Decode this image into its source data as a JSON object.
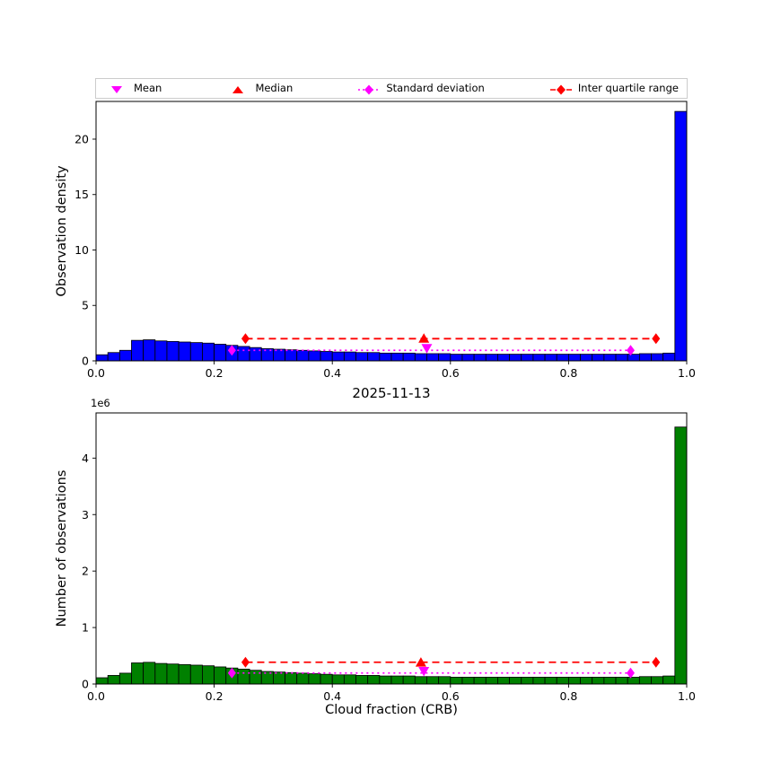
{
  "figure": {
    "background": "#ffffff"
  },
  "legend": {
    "items": [
      {
        "label": "Mean",
        "marker": "triangle-down",
        "color": "#ff00ff"
      },
      {
        "label": "Median",
        "marker": "triangle-up",
        "color": "#ff0000"
      },
      {
        "label": "Standard deviation",
        "marker": "diamond-dotted-line",
        "color": "#ff00ff"
      },
      {
        "label": "Inter quartile range",
        "marker": "diamond-dashed-line",
        "color": "#ff0000"
      }
    ]
  },
  "chart_data": [
    {
      "type": "bar",
      "name": "observation-density",
      "ylabel": "Observation density",
      "bar_color": "#0000ff",
      "bar_edge_color": "#000000",
      "xlim": [
        0,
        1
      ],
      "ylim": [
        0,
        23.4
      ],
      "bin_width": 0.02,
      "x_ticks": [
        0,
        0.2,
        0.4,
        0.6,
        0.8,
        1.0
      ],
      "x_tick_labels": [
        "0.0",
        "0.2",
        "0.4",
        "0.6",
        "0.8",
        "1.0"
      ],
      "y_ticks": [
        0,
        5,
        10,
        15,
        20
      ],
      "y_tick_labels": [
        "0",
        "5",
        "10",
        "15",
        "20"
      ],
      "values": [
        0.55,
        0.75,
        0.95,
        1.85,
        1.9,
        1.8,
        1.75,
        1.7,
        1.65,
        1.6,
        1.5,
        1.4,
        1.3,
        1.2,
        1.1,
        1.05,
        1.0,
        0.95,
        0.9,
        0.85,
        0.8,
        0.8,
        0.75,
        0.75,
        0.7,
        0.7,
        0.7,
        0.65,
        0.65,
        0.65,
        0.6,
        0.6,
        0.6,
        0.6,
        0.6,
        0.6,
        0.6,
        0.6,
        0.6,
        0.6,
        0.6,
        0.6,
        0.6,
        0.6,
        0.6,
        0.6,
        0.65,
        0.65,
        0.7,
        22.5
      ],
      "stats": {
        "mean": {
          "x": 0.56,
          "y": 1.15,
          "color": "#ff00ff"
        },
        "median": {
          "x": 0.555,
          "y": 2.0,
          "color": "#ff0000"
        },
        "std_range": {
          "x1": 0.23,
          "x2": 0.905,
          "y": 0.95,
          "color": "#ff00ff"
        },
        "iqr_range": {
          "x1": 0.253,
          "x2": 0.948,
          "y": 2.0,
          "color": "#ff0000"
        }
      }
    },
    {
      "type": "bar",
      "name": "number-of-observations",
      "title": "2025-11-13",
      "xlabel": "Cloud fraction (CRB)",
      "ylabel": "Number of observations",
      "y_offset_text": "1e6",
      "values_unit": "1e6",
      "bar_color": "#008000",
      "bar_edge_color": "#000000",
      "xlim": [
        0,
        1
      ],
      "ylim": [
        0,
        4.8
      ],
      "bin_width": 0.02,
      "x_ticks": [
        0,
        0.2,
        0.4,
        0.6,
        0.8,
        1.0
      ],
      "x_tick_labels": [
        "0.0",
        "0.2",
        "0.4",
        "0.6",
        "0.8",
        "1.0"
      ],
      "y_ticks": [
        0,
        1,
        2,
        3,
        4
      ],
      "y_tick_labels": [
        "0",
        "1",
        "2",
        "3",
        "4"
      ],
      "values": [
        0.111,
        0.152,
        0.192,
        0.374,
        0.384,
        0.364,
        0.354,
        0.344,
        0.334,
        0.323,
        0.303,
        0.283,
        0.263,
        0.243,
        0.222,
        0.212,
        0.202,
        0.192,
        0.182,
        0.172,
        0.162,
        0.162,
        0.152,
        0.152,
        0.142,
        0.142,
        0.142,
        0.131,
        0.131,
        0.131,
        0.121,
        0.121,
        0.121,
        0.121,
        0.121,
        0.121,
        0.121,
        0.121,
        0.121,
        0.121,
        0.121,
        0.121,
        0.121,
        0.121,
        0.121,
        0.121,
        0.131,
        0.131,
        0.142,
        4.55
      ],
      "stats": {
        "mean": {
          "x": 0.555,
          "y": 0.23,
          "color": "#ff00ff"
        },
        "median": {
          "x": 0.55,
          "y": 0.38,
          "color": "#ff0000"
        },
        "std_range": {
          "x1": 0.23,
          "x2": 0.905,
          "y": 0.195,
          "color": "#ff00ff"
        },
        "iqr_range": {
          "x1": 0.253,
          "x2": 0.948,
          "y": 0.385,
          "color": "#ff0000"
        }
      }
    }
  ]
}
